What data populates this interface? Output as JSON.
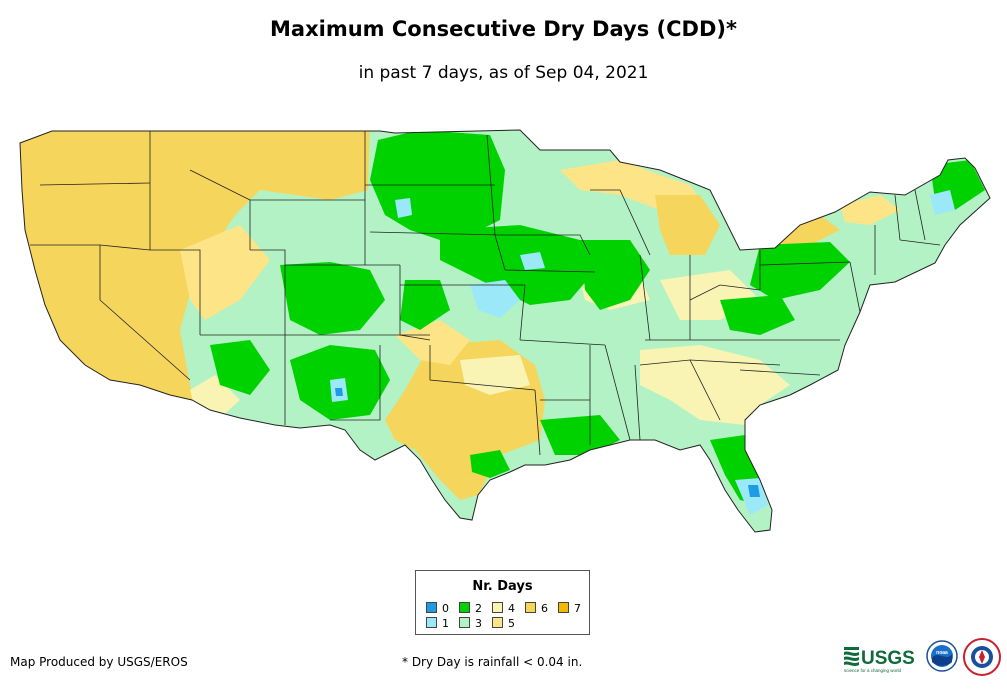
{
  "title": "Maximum Consecutive Dry Days (CDD)*",
  "subtitle": "in past 7 days, as of Sep 04, 2021",
  "legend": {
    "title": "Nr. Days",
    "items": [
      {
        "label": "0",
        "color": "#1f9be6"
      },
      {
        "label": "1",
        "color": "#9be9f8"
      },
      {
        "label": "2",
        "color": "#00d200"
      },
      {
        "label": "3",
        "color": "#b2f2c4"
      },
      {
        "label": "4",
        "color": "#f9f4b4"
      },
      {
        "label": "5",
        "color": "#fde486"
      },
      {
        "label": "6",
        "color": "#f6d55c"
      },
      {
        "label": "7",
        "color": "#f4b800"
      }
    ]
  },
  "credit": "Map Produced by USGS/EROS",
  "footnote": "* Dry Day is rainfall < 0.04 in.",
  "logos": {
    "usgs": "USGS",
    "usgs_tagline": "science for a changing world",
    "noaa": "noaa"
  }
}
